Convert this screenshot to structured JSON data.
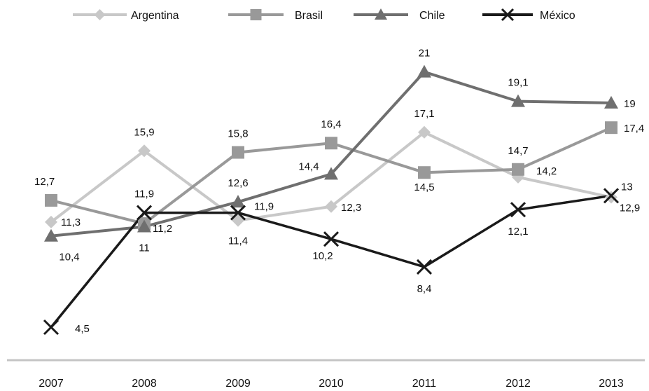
{
  "chart_data": {
    "type": "line",
    "title": "",
    "xlabel": "",
    "ylabel": "",
    "categories": [
      "2007",
      "2008",
      "2009",
      "2010",
      "2011",
      "2012",
      "2013"
    ],
    "ylim": [
      3,
      22
    ],
    "grid": false,
    "legend_position": "top",
    "series": [
      {
        "name": "Argentina",
        "values": [
          11.3,
          15.9,
          11.4,
          12.3,
          17.1,
          14.2,
          12.9
        ],
        "value_labels": [
          "11,3",
          "15,9",
          "11,4",
          "12,3",
          "17,1",
          "14,2",
          "12,9"
        ],
        "color": "#c8c8c8",
        "marker": "diamond"
      },
      {
        "name": "Brasil",
        "values": [
          12.7,
          11.2,
          15.8,
          16.4,
          14.5,
          14.7,
          17.4
        ],
        "value_labels": [
          "12,7",
          "11,2",
          "15,8",
          "16,4",
          "14,5",
          "14,7",
          "17,4"
        ],
        "color": "#999999",
        "marker": "square"
      },
      {
        "name": "Chile",
        "values": [
          10.4,
          11,
          12.6,
          14.4,
          21,
          19.1,
          19
        ],
        "value_labels": [
          "10,4",
          "11",
          "12,6",
          "14,4",
          "21",
          "19,1",
          "19"
        ],
        "color": "#6f6f6f",
        "marker": "triangle"
      },
      {
        "name": "México",
        "values": [
          4.5,
          11.9,
          11.9,
          10.2,
          8.4,
          12.1,
          13
        ],
        "value_labels": [
          "4,5",
          "11,9",
          "11,9",
          "10,2",
          "8,4",
          "12,1",
          "13"
        ],
        "color": "#1a1a1a",
        "marker": "x"
      }
    ]
  }
}
